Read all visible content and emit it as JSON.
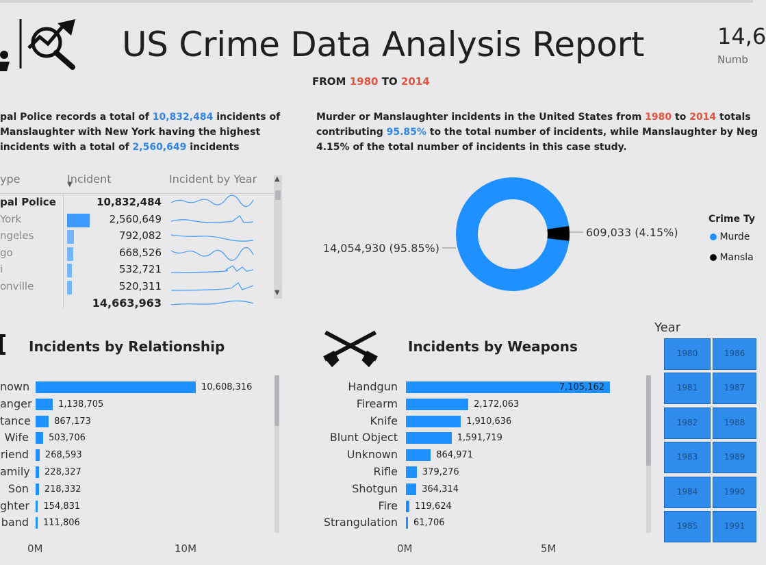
{
  "header": {
    "title": "US Crime Data Analysis Report",
    "from_label": "FROM",
    "year_start": "1980",
    "to_label": "TO",
    "year_end": "2014",
    "kpi_value": "14,6",
    "kpi_label": "Numb"
  },
  "left_narrative": {
    "l1a": "pal Police records a total of ",
    "l1b": "10,832,484",
    "l1c": " incidents of",
    "l2": "Manslaughter with New York having the highest",
    "l3a": "incidents with a total of ",
    "l3b": "2,560,649",
    "l3c": " incidents"
  },
  "right_narrative": {
    "l1a": "Murder or Manslaughter incidents in the United States from ",
    "l1b": "1980",
    "l1c": " to ",
    "l1d": "2014",
    "l1e": " totals",
    "l2a": "contributing ",
    "l2b": "95.85%",
    "l2c": " to the total number of incidents, while Manslaughter by Neg",
    "l3": "4.15% of the total number of incidents in this case study."
  },
  "agency_table": {
    "col_type": "ype",
    "col_incident": "Incident",
    "col_by_year": "Incident by Year",
    "rows": [
      {
        "name": "pal Police",
        "value": "10,832,484",
        "level": 1.0
      },
      {
        "name": "York",
        "value": "2,560,649",
        "level": 0.236
      },
      {
        "name": "ngeles",
        "value": "792,082",
        "level": 0.073
      },
      {
        "name": "go",
        "value": "668,526",
        "level": 0.062
      },
      {
        "name": "i",
        "value": "532,721",
        "level": 0.049
      },
      {
        "name": "onville",
        "value": "520,311",
        "level": 0.048
      }
    ],
    "total": "14,663,963"
  },
  "donut": {
    "murder_label": "14,054,930 (95.85%)",
    "manslaughter_label": "609,033 (4.15%)",
    "murder_pct": 95.85,
    "manslaughter_pct": 4.15,
    "murder_color": "#1e90ff",
    "manslaughter_color": "#000000",
    "legend_title": "Crime Ty",
    "legend_items": [
      "Murde",
      "Mansla"
    ]
  },
  "relationship_chart": {
    "title": "Incidents by Relationship",
    "icon": "family-icon",
    "axis_ticks": [
      "0M",
      "10M"
    ],
    "categories": [
      "nown",
      "anger",
      "tance",
      "Wife",
      "riend",
      "amily",
      "Son",
      "ghter",
      "band"
    ],
    "values": [
      10608316,
      1138705,
      867173,
      503706,
      268593,
      228327,
      218332,
      154831,
      111806
    ],
    "value_labels": [
      "10,608,316",
      "1,138,705",
      "867,173",
      "503,706",
      "268,593",
      "228,327",
      "218,332",
      "154,831",
      "111,806"
    ]
  },
  "weapons_chart": {
    "title": "Incidents by Weapons",
    "icon": "crossed-rifles-icon",
    "axis_ticks": [
      "0M",
      "5M"
    ],
    "categories": [
      "Handgun",
      "Firearm",
      "Knife",
      "Blunt Object",
      "Unknown",
      "Rifle",
      "Shotgun",
      "Fire",
      "Strangulation"
    ],
    "values": [
      7105162,
      2172063,
      1910636,
      1591719,
      864971,
      379276,
      364314,
      119624,
      61706
    ],
    "value_labels": [
      "7,105,162",
      "2,172,063",
      "1,910,636",
      "1,591,719",
      "864,971",
      "379,276",
      "364,314",
      "119,624",
      "61,706"
    ]
  },
  "year_slicer": {
    "title": "Year",
    "col1": [
      "1980",
      "1981",
      "1982",
      "1983",
      "1984",
      "1985"
    ],
    "col2": [
      "1986",
      "1987",
      "1988",
      "1989",
      "1990",
      "1991"
    ]
  }
}
